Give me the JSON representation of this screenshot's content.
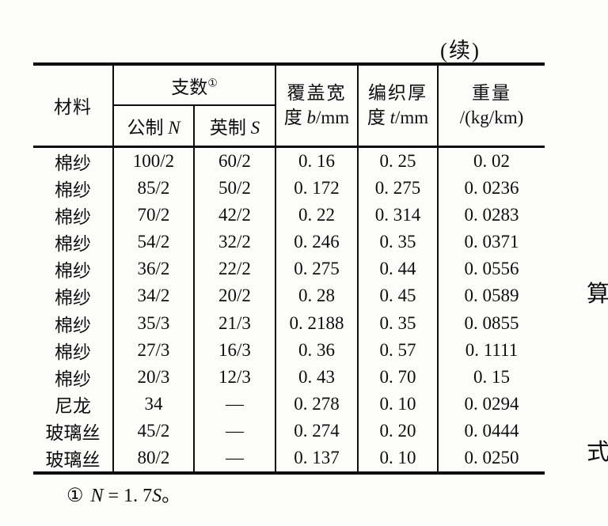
{
  "page": {
    "continued_label": "(续)",
    "side_text_top": "算",
    "side_text_bottom": "式"
  },
  "table": {
    "header": {
      "material": "材料",
      "count_group": "支数",
      "count_sup": "①",
      "metric_prefix": "公制 ",
      "metric_var": "N",
      "imperial_prefix": "英制 ",
      "imperial_var": "S",
      "cover_line1": "覆盖宽",
      "cover_line2_prefix": "度 ",
      "cover_var": "b",
      "cover_unit": "/mm",
      "braid_line1": "编织厚",
      "braid_line2_prefix": "度 ",
      "braid_var": "t",
      "braid_unit": "/mm",
      "weight_line1": "重量",
      "weight_line2": "/(kg/km)"
    },
    "rows": [
      [
        "棉纱",
        "100/2",
        "60/2",
        "0. 16",
        "0. 25",
        "0. 02"
      ],
      [
        "棉纱",
        "85/2",
        "50/2",
        "0. 172",
        "0. 275",
        "0. 0236"
      ],
      [
        "棉纱",
        "70/2",
        "42/2",
        "0. 22",
        "0. 314",
        "0. 0283"
      ],
      [
        "棉纱",
        "54/2",
        "32/2",
        "0. 246",
        "0. 35",
        "0. 0371"
      ],
      [
        "棉纱",
        "36/2",
        "22/2",
        "0. 275",
        "0. 44",
        "0. 0556"
      ],
      [
        "棉纱",
        "34/2",
        "20/2",
        "0. 28",
        "0. 45",
        "0. 0589"
      ],
      [
        "棉纱",
        "35/3",
        "21/3",
        "0. 2188",
        "0. 35",
        "0. 0855"
      ],
      [
        "棉纱",
        "27/3",
        "16/3",
        "0. 36",
        "0. 57",
        "0. 1111"
      ],
      [
        "棉纱",
        "20/3",
        "12/3",
        "0. 43",
        "0. 70",
        "0. 15"
      ],
      [
        "尼龙",
        "34",
        "—",
        "0. 278",
        "0. 10",
        "0. 0294"
      ],
      [
        "玻璃丝",
        "45/2",
        "—",
        "0. 274",
        "0. 20",
        "0. 0444"
      ],
      [
        "玻璃丝",
        "80/2",
        "—",
        "0. 137",
        "0. 10",
        "0. 0250"
      ]
    ]
  },
  "footnote": {
    "marker": "①",
    "var1": "N",
    "middle": " = 1. 7",
    "var2": "S",
    "terminator": "。"
  }
}
